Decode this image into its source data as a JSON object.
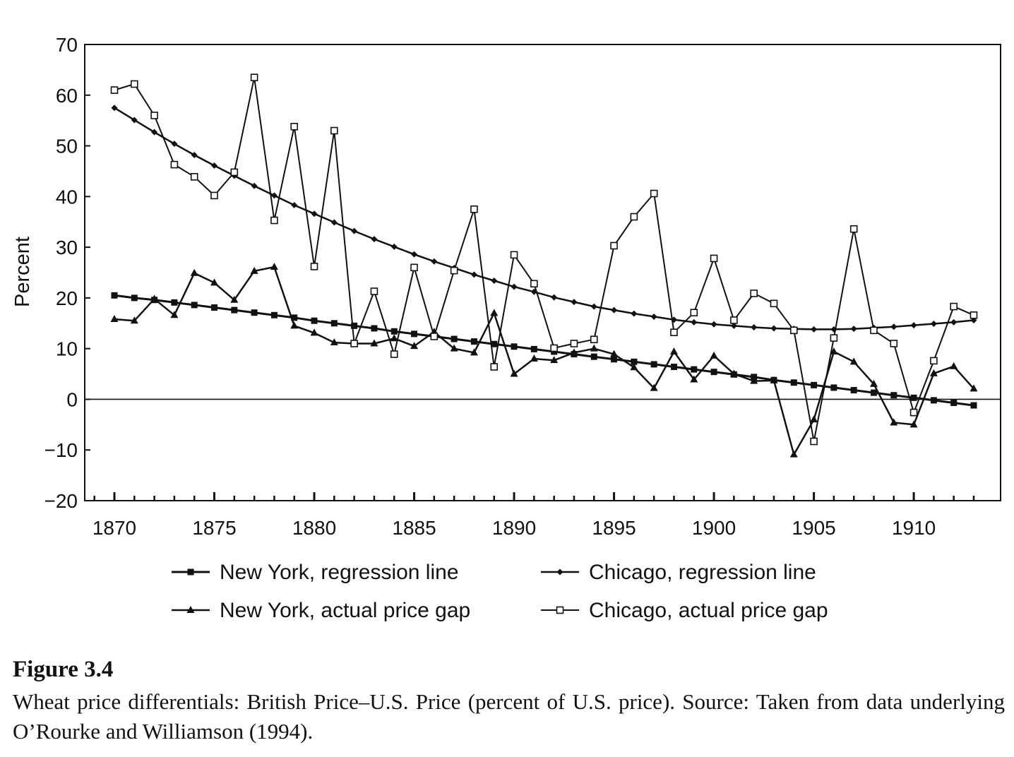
{
  "chart_data": {
    "type": "line",
    "title": "",
    "xlabel": "",
    "ylabel": "Percent",
    "xlim": [
      1869,
      1914
    ],
    "ylim": [
      -20,
      70
    ],
    "x_ticks": [
      1870,
      1875,
      1880,
      1885,
      1890,
      1895,
      1900,
      1905,
      1910
    ],
    "y_ticks": [
      -20,
      -10,
      0,
      10,
      20,
      30,
      40,
      50,
      60,
      70
    ],
    "y_tick_labels": [
      "−20",
      "−10",
      "0",
      "10",
      "20",
      "30",
      "40",
      "50",
      "60",
      "70"
    ],
    "zero_line": true,
    "grid": false,
    "legend_position": "bottom",
    "series": [
      {
        "name": "New York, regression line",
        "marker": "filled-square",
        "x": [
          1870,
          1871,
          1872,
          1873,
          1874,
          1875,
          1876,
          1877,
          1878,
          1879,
          1880,
          1881,
          1882,
          1883,
          1884,
          1885,
          1886,
          1887,
          1888,
          1889,
          1890,
          1891,
          1892,
          1893,
          1894,
          1895,
          1896,
          1897,
          1898,
          1899,
          1900,
          1901,
          1902,
          1903,
          1904,
          1905,
          1906,
          1907,
          1908,
          1909,
          1910,
          1911,
          1912,
          1913
        ],
        "y": [
          20.5,
          20.0,
          19.6,
          19.1,
          18.6,
          18.1,
          17.6,
          17.1,
          16.6,
          16.1,
          15.5,
          15.0,
          14.5,
          14.0,
          13.4,
          12.9,
          12.4,
          11.9,
          11.4,
          10.9,
          10.4,
          9.9,
          9.4,
          8.9,
          8.4,
          7.9,
          7.4,
          6.9,
          6.4,
          5.9,
          5.4,
          4.9,
          4.4,
          3.8,
          3.3,
          2.8,
          2.3,
          1.8,
          1.3,
          0.8,
          0.3,
          -0.2,
          -0.7,
          -1.2
        ]
      },
      {
        "name": "Chicago, regression line",
        "marker": "filled-diamond",
        "x": [
          1870,
          1871,
          1872,
          1873,
          1874,
          1875,
          1876,
          1877,
          1878,
          1879,
          1880,
          1881,
          1882,
          1883,
          1884,
          1885,
          1886,
          1887,
          1888,
          1889,
          1890,
          1891,
          1892,
          1893,
          1894,
          1895,
          1896,
          1897,
          1898,
          1899,
          1900,
          1901,
          1902,
          1903,
          1904,
          1905,
          1906,
          1907,
          1908,
          1909,
          1910,
          1911,
          1912,
          1913
        ],
        "y": [
          57.5,
          55.1,
          52.7,
          50.4,
          48.2,
          46.1,
          44.1,
          42.1,
          40.2,
          38.3,
          36.6,
          34.9,
          33.2,
          31.6,
          30.1,
          28.6,
          27.2,
          25.9,
          24.6,
          23.4,
          22.2,
          21.2,
          20.1,
          19.2,
          18.3,
          17.6,
          16.9,
          16.3,
          15.7,
          15.2,
          14.8,
          14.5,
          14.2,
          14.0,
          13.9,
          13.8,
          13.8,
          13.9,
          14.1,
          14.3,
          14.6,
          14.9,
          15.2,
          15.6
        ]
      },
      {
        "name": "New York, actual price gap",
        "marker": "filled-triangle",
        "x": [
          1870,
          1871,
          1872,
          1873,
          1874,
          1875,
          1876,
          1877,
          1878,
          1879,
          1880,
          1881,
          1882,
          1883,
          1884,
          1885,
          1886,
          1887,
          1888,
          1889,
          1890,
          1891,
          1892,
          1893,
          1894,
          1895,
          1896,
          1897,
          1898,
          1899,
          1900,
          1901,
          1902,
          1903,
          1904,
          1905,
          1906,
          1907,
          1908,
          1909,
          1910,
          1911,
          1912,
          1913
        ],
        "y": [
          15.8,
          15.5,
          19.8,
          16.6,
          24.9,
          23.0,
          19.6,
          25.3,
          26.1,
          14.5,
          13.1,
          11.2,
          11.0,
          11.0,
          12.0,
          10.5,
          13.3,
          10.0,
          9.2,
          17.0,
          5.0,
          8.0,
          7.7,
          9.2,
          10.0,
          8.9,
          6.3,
          2.2,
          9.4,
          3.9,
          8.6,
          5.0,
          3.6,
          3.7,
          -10.9,
          -4.0,
          9.4,
          7.4,
          3.0,
          -4.6,
          -5.0,
          5.1,
          6.5,
          2.1
        ]
      },
      {
        "name": "Chicago, actual price gap",
        "marker": "open-square",
        "x": [
          1870,
          1871,
          1872,
          1873,
          1874,
          1875,
          1876,
          1877,
          1878,
          1879,
          1880,
          1881,
          1882,
          1883,
          1884,
          1885,
          1886,
          1887,
          1888,
          1889,
          1890,
          1891,
          1892,
          1893,
          1894,
          1895,
          1896,
          1897,
          1898,
          1899,
          1900,
          1901,
          1902,
          1903,
          1904,
          1905,
          1906,
          1907,
          1908,
          1909,
          1910,
          1911,
          1912,
          1913
        ],
        "y": [
          61.0,
          62.2,
          56.0,
          46.3,
          43.9,
          40.2,
          44.8,
          63.5,
          35.3,
          53.8,
          26.2,
          53.0,
          11.0,
          21.3,
          8.9,
          26.0,
          12.4,
          25.4,
          37.5,
          6.4,
          28.5,
          22.8,
          10.1,
          11.0,
          11.8,
          30.3,
          36.0,
          40.6,
          13.2,
          17.1,
          27.8,
          15.6,
          20.9,
          18.9,
          13.6,
          -8.3,
          12.1,
          33.6,
          13.6,
          11.0,
          -2.6,
          7.6,
          18.3,
          16.6
        ]
      }
    ]
  },
  "caption": {
    "label": "Figure 3.4",
    "text": "Wheat price differentials: British Price–U.S. Price (percent of U.S. price). Source: Taken from data underlying O’Rourke and Williamson (1994)."
  }
}
